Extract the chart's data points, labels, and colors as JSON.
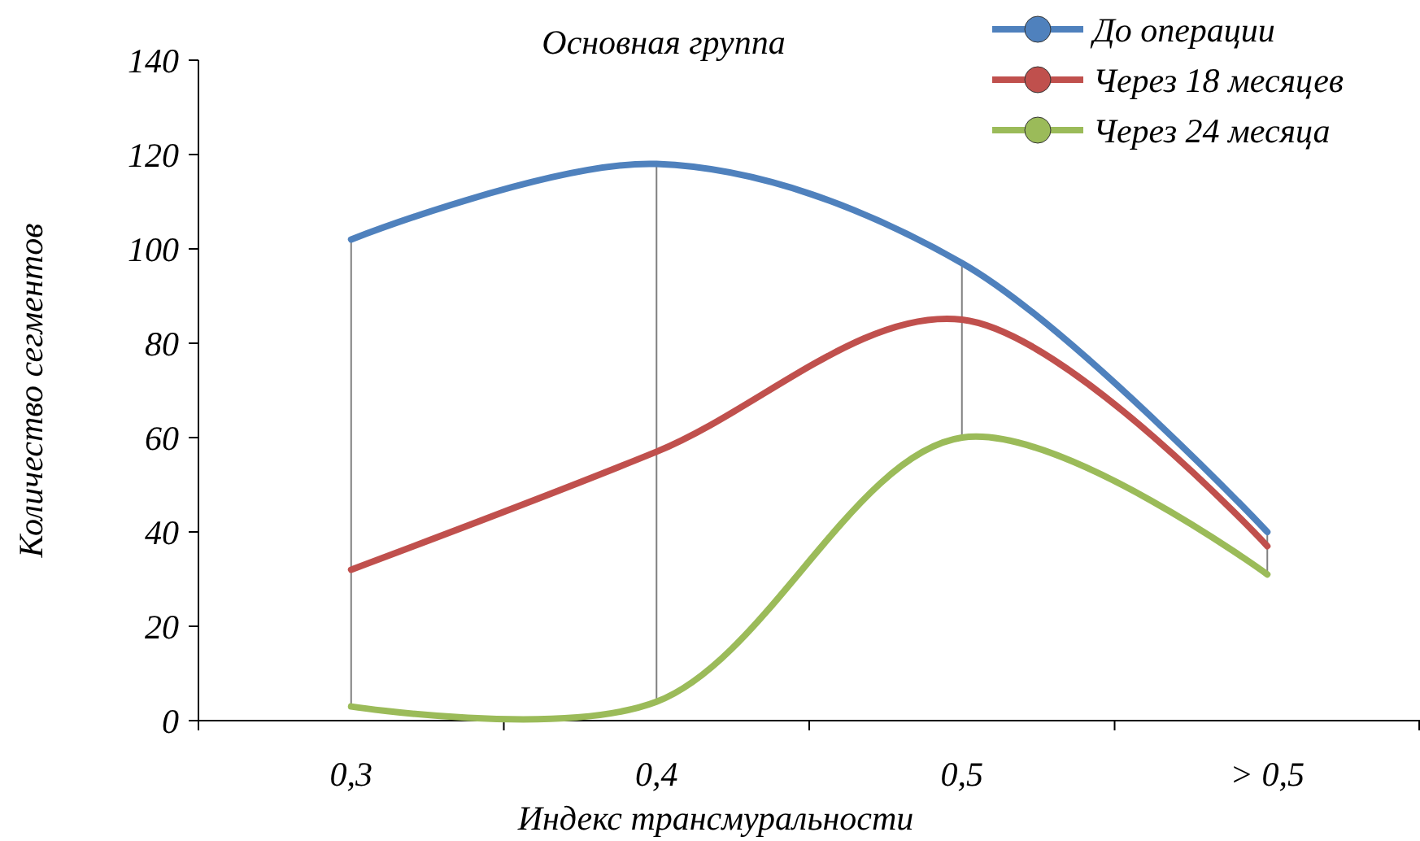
{
  "chart_data": {
    "type": "line",
    "title": "Основная группа",
    "xlabel": "Индекс трансмуральности",
    "ylabel": "Количество сегментов",
    "categories": [
      "0,3",
      "0,4",
      "0,5",
      "> 0,5"
    ],
    "series": [
      {
        "name": "До операции",
        "color": "#4f81bd",
        "values": [
          102,
          118,
          97,
          40
        ]
      },
      {
        "name": "Через 18 месяцев",
        "color": "#c0504d",
        "values": [
          32,
          57,
          85,
          37
        ]
      },
      {
        "name": "Через 24 месяца",
        "color": "#9bbb59",
        "values": [
          3,
          4,
          60,
          31
        ]
      },
      {
        "type": "bar",
        "color": "#808080",
        "base": [
          3,
          4,
          60,
          31
        ],
        "values": [
          99,
          114,
          37,
          9
        ]
      }
    ],
    "ylim": [
      0,
      140
    ],
    "yticks": [
      0,
      20,
      40,
      60,
      80,
      100,
      120,
      140
    ],
    "legend": "top right",
    "marker": "none",
    "line_style": "solid"
  }
}
